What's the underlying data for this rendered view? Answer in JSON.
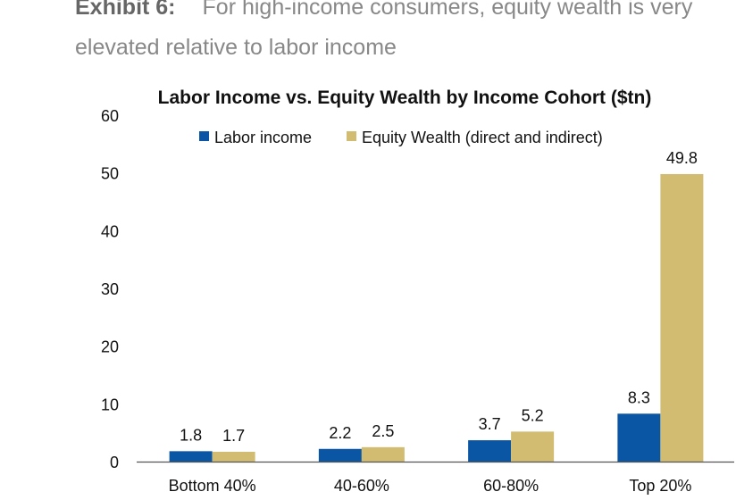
{
  "exhibit": {
    "label": "Exhibit 6:",
    "line1": "For high-income consumers, equity wealth is very",
    "line2": "elevated relative to labor income"
  },
  "chart_data": {
    "type": "bar",
    "title": "Labor Income vs. Equity Wealth by Income Cohort ($tn)",
    "categories": [
      "Bottom 40%",
      "40-60%",
      "60-80%",
      "Top 20%"
    ],
    "series": [
      {
        "name": "Labor income",
        "values": [
          1.8,
          2.2,
          3.7,
          8.3
        ],
        "color": "#0a56a4"
      },
      {
        "name": "Equity Wealth (direct and indirect)",
        "values": [
          1.7,
          2.5,
          5.2,
          49.8
        ],
        "color": "#d1bc72"
      }
    ],
    "ylim": [
      0,
      60
    ],
    "yticks": [
      0,
      10,
      20,
      30,
      40,
      50,
      60
    ],
    "xlabel": "",
    "ylabel": "",
    "grid": false,
    "legend": "top"
  }
}
